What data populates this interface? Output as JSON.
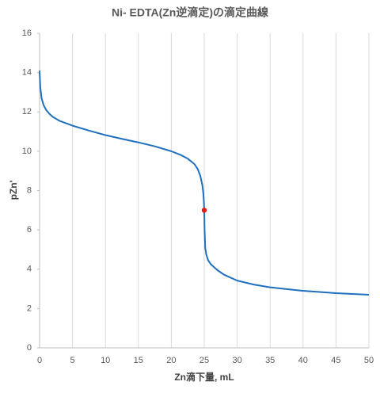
{
  "chart_data": {
    "type": "line",
    "title": "Ni- EDTA(Zn逆滴定)の滴定曲線",
    "x_label": "Zn滴下量, mL",
    "y_label": "pZn'",
    "series": [
      {
        "color": "#1f6fbf",
        "x": [
          0,
          0.1,
          0.3,
          0.6,
          1,
          1.5,
          2,
          3,
          5,
          7.5,
          10,
          12.5,
          15,
          17.5,
          20,
          21.5,
          22.5,
          23.5,
          24,
          24.4,
          24.7,
          24.85,
          24.95,
          25,
          25.05,
          25.15,
          25.3,
          25.6,
          26,
          27,
          28,
          30,
          32.5,
          35,
          40,
          45,
          50
        ],
        "values": [
          14.1,
          13.3,
          12.7,
          12.35,
          12.1,
          11.9,
          11.75,
          11.55,
          11.3,
          11.05,
          10.82,
          10.63,
          10.45,
          10.25,
          10.0,
          9.8,
          9.62,
          9.35,
          9.1,
          8.75,
          8.3,
          7.9,
          7.4,
          7.0,
          6.0,
          5.1,
          4.75,
          4.45,
          4.25,
          3.95,
          3.72,
          3.42,
          3.22,
          3.08,
          2.9,
          2.78,
          2.7
        ]
      },
      {
        "color": "#e0201b",
        "marker": true,
        "x": [
          25
        ],
        "values": [
          7
        ]
      }
    ],
    "xlim": [
      0,
      50
    ],
    "xticks": [
      0,
      5,
      10,
      15,
      20,
      25,
      30,
      35,
      40,
      45,
      50
    ],
    "ylim": [
      0,
      16
    ],
    "yticks": [
      0,
      2,
      4,
      6,
      8,
      10,
      12,
      14,
      16
    ],
    "grid": "x"
  }
}
